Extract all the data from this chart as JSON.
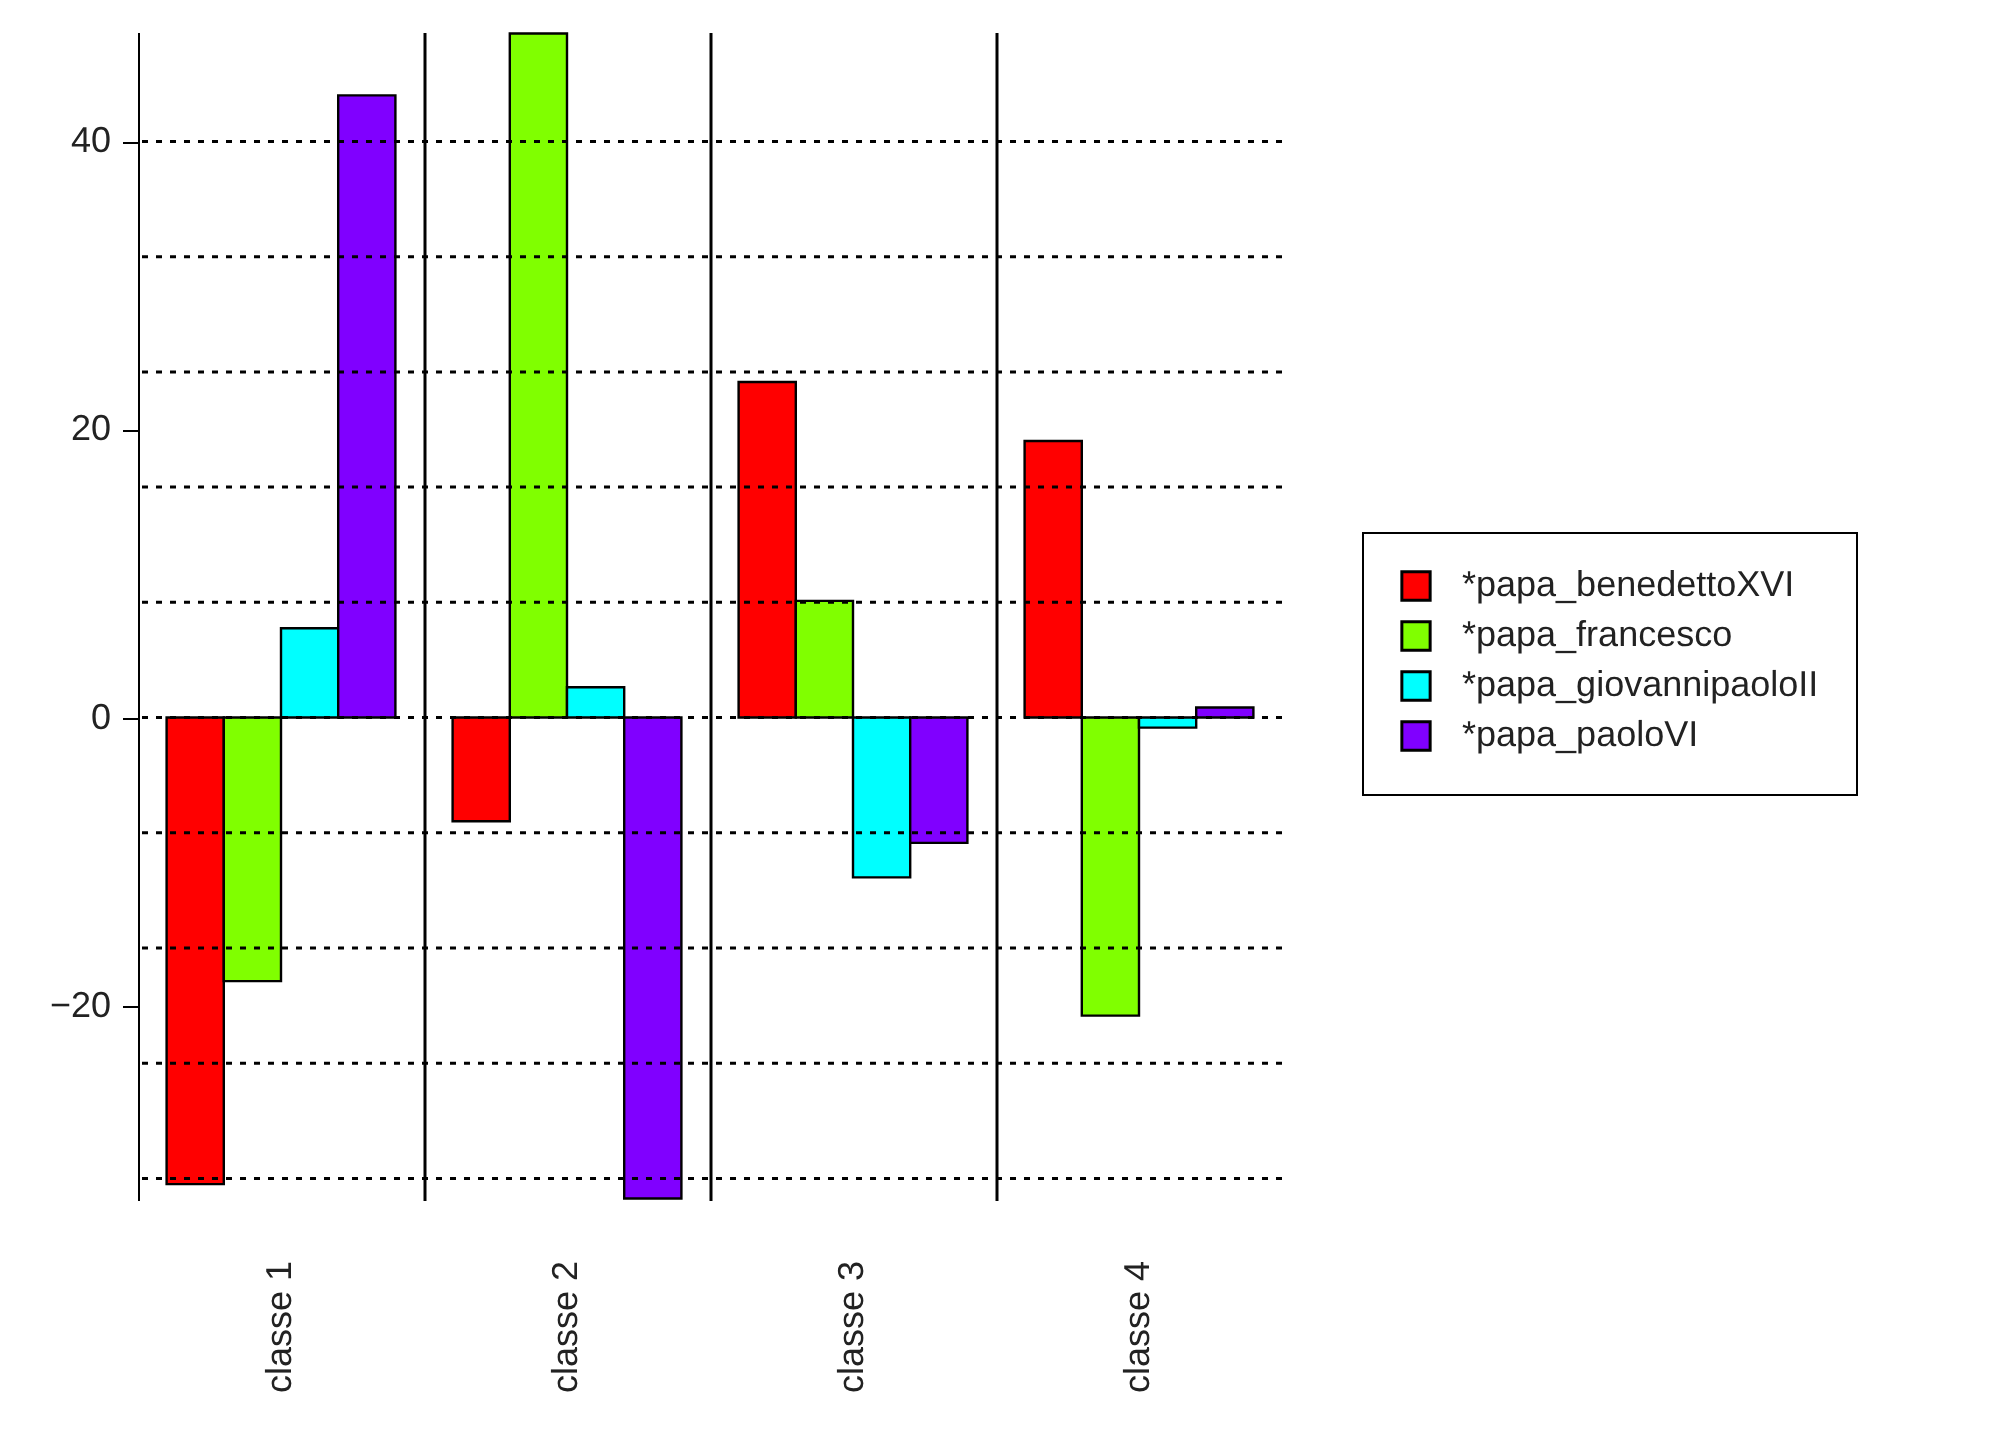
{
  "chart_data": {
    "type": "bar",
    "categories": [
      "classe 1",
      "classe 2",
      "classe 3",
      "classe 4"
    ],
    "series": [
      {
        "name": "*papa_benedettoXVI",
        "color": "#ff0000",
        "values": [
          -32.4,
          -7.2,
          23.3,
          19.2
        ]
      },
      {
        "name": "*papa_francesco",
        "color": "#80ff00",
        "values": [
          -18.3,
          47.5,
          8.1,
          -20.7
        ]
      },
      {
        "name": "*papa_giovannipaoloII",
        "color": "#00ffff",
        "values": [
          6.2,
          2.1,
          -11.1,
          -0.7
        ]
      },
      {
        "name": "*papa_paoloVI",
        "color": "#8000ff",
        "values": [
          43.2,
          -33.4,
          -8.7,
          0.7
        ]
      }
    ],
    "ylim": [
      -33.5,
      47.6
    ],
    "yticks": [
      -20,
      0,
      20,
      40
    ],
    "ref_lines": [
      {
        "axis": "y",
        "value": 40,
        "line_style": "dotted"
      },
      {
        "axis": "y",
        "value": 32,
        "line_style": "dotted"
      },
      {
        "axis": "y",
        "value": 24,
        "line_style": "dotted"
      },
      {
        "axis": "y",
        "value": 16,
        "line_style": "dotted"
      },
      {
        "axis": "y",
        "value": 8,
        "line_style": "dotted"
      },
      {
        "axis": "y",
        "value": 0,
        "line_style": "dotted"
      },
      {
        "axis": "y",
        "value": -8,
        "line_style": "dotted"
      },
      {
        "axis": "y",
        "value": -16,
        "line_style": "dotted"
      },
      {
        "axis": "y",
        "value": -24,
        "line_style": "dotted"
      },
      {
        "axis": "y",
        "value": -32,
        "line_style": "dotted"
      }
    ],
    "grid": "x",
    "legend": "right"
  }
}
